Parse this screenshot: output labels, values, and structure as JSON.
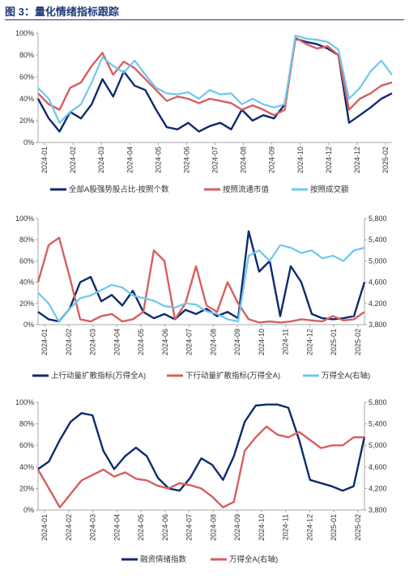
{
  "figure_title": "图 3：量化情绪指标跟踪",
  "colors": {
    "navy": "#0e2a6e",
    "red": "#d65f5f",
    "light_blue": "#6fc7ec",
    "title": "#1f3a78",
    "axis": "#a8a8a8",
    "text": "#333333"
  },
  "chart_data": [
    {
      "type": "line",
      "x_tick_labels": [
        "2024-01",
        "2024-02",
        "2024-03",
        "2024-04",
        "2024-05",
        "2024-06",
        "2024-07",
        "2024-08",
        "2024-09",
        "2024-10",
        "2024-12",
        "2024-12",
        "2025-02"
      ],
      "y_tick_labels": [
        "0%",
        "20%",
        "40%",
        "60%",
        "80%",
        "100%"
      ],
      "ylim": [
        0,
        100
      ],
      "legend_position": "bottom",
      "series": [
        {
          "name": "全部A股强势股占比-按照个数",
          "color": "#0e2a6e",
          "axis": "left",
          "values": [
            40,
            22,
            10,
            28,
            22,
            35,
            58,
            42,
            65,
            52,
            48,
            30,
            14,
            12,
            18,
            10,
            15,
            18,
            12,
            30,
            20,
            25,
            22,
            35,
            95,
            92,
            90,
            86,
            80,
            18,
            25,
            32,
            40,
            45
          ]
        },
        {
          "name": "按照流通市值",
          "color": "#d65f5f",
          "axis": "left",
          "values": [
            45,
            35,
            30,
            50,
            55,
            70,
            82,
            62,
            74,
            68,
            58,
            48,
            38,
            42,
            40,
            36,
            40,
            38,
            36,
            30,
            34,
            30,
            25,
            30,
            96,
            90,
            86,
            88,
            80,
            30,
            40,
            45,
            52,
            55
          ]
        },
        {
          "name": "按照成交额",
          "color": "#6fc7ec",
          "axis": "left",
          "values": [
            50,
            40,
            18,
            28,
            35,
            55,
            78,
            70,
            64,
            75,
            62,
            50,
            45,
            44,
            46,
            40,
            48,
            44,
            45,
            35,
            40,
            35,
            32,
            35,
            98,
            95,
            94,
            92,
            85,
            40,
            50,
            65,
            75,
            62
          ]
        }
      ]
    },
    {
      "type": "line",
      "x_tick_labels": [
        "2024-01",
        "2024-02",
        "2024-03",
        "2024-04",
        "2024-05",
        "2024-06",
        "2024-07",
        "2024-08",
        "2024-09",
        "2024-10",
        "2024-11",
        "2024-12",
        "2025-01",
        "2025-02"
      ],
      "y_tick_labels": [
        "0%",
        "20%",
        "40%",
        "60%",
        "80%",
        "100%"
      ],
      "y2_tick_labels": [
        "3,800",
        "4,200",
        "4,600",
        "5,000",
        "5,400",
        "5,800"
      ],
      "ylim": [
        0,
        100
      ],
      "y2lim": [
        3800,
        5800
      ],
      "legend_position": "bottom",
      "series": [
        {
          "name": "上行动量扩散指标(万得全A)",
          "color": "#0e2a6e",
          "axis": "left",
          "values": [
            12,
            5,
            3,
            15,
            40,
            45,
            22,
            28,
            18,
            32,
            12,
            6,
            10,
            5,
            14,
            10,
            15,
            8,
            12,
            6,
            88,
            50,
            60,
            8,
            55,
            40,
            10,
            6,
            5,
            6,
            8,
            40
          ]
        },
        {
          "name": "下行动量扩散指标(万得全A)",
          "color": "#d65f5f",
          "axis": "left",
          "values": [
            40,
            75,
            82,
            45,
            5,
            3,
            8,
            10,
            3,
            5,
            12,
            70,
            60,
            5,
            20,
            55,
            18,
            12,
            40,
            20,
            5,
            2,
            3,
            2,
            3,
            5,
            4,
            3,
            8,
            4,
            5,
            12
          ]
        },
        {
          "name": "万得全A(右轴)",
          "color": "#6fc7ec",
          "axis": "right",
          "values": [
            4400,
            4200,
            3850,
            4100,
            4300,
            4350,
            4450,
            4550,
            4500,
            4350,
            4300,
            4250,
            4150,
            4120,
            4200,
            4180,
            4050,
            4000,
            3900,
            3860,
            5100,
            5200,
            5000,
            5300,
            5250,
            5150,
            5200,
            5050,
            5100,
            5000,
            5200,
            5250
          ]
        }
      ]
    },
    {
      "type": "line",
      "x_tick_labels": [
        "2024-01",
        "2024-02",
        "2024-03",
        "2024-04",
        "2024-05",
        "2024-06",
        "2024-07",
        "2024-08",
        "2024-09",
        "2024-10",
        "2024-11",
        "2024-12",
        "2025-01",
        "2025-02"
      ],
      "y_tick_labels": [
        "0%",
        "20%",
        "40%",
        "60%",
        "80%",
        "100%"
      ],
      "y2_tick_labels": [
        "3,800",
        "4,200",
        "4,600",
        "5,000",
        "5,400",
        "5,800"
      ],
      "ylim": [
        0,
        100
      ],
      "y2lim": [
        3800,
        5800
      ],
      "legend_position": "bottom",
      "series": [
        {
          "name": "融资情绪指数",
          "color": "#0e2a6e",
          "axis": "left",
          "values": [
            38,
            45,
            65,
            82,
            90,
            88,
            55,
            38,
            50,
            58,
            50,
            30,
            20,
            18,
            30,
            48,
            42,
            28,
            50,
            82,
            97,
            98,
            98,
            95,
            65,
            28,
            25,
            22,
            18,
            22,
            68
          ]
        },
        {
          "name": "万得全A(右轴)",
          "color": "#d65f5f",
          "axis": "right",
          "values": [
            4550,
            4200,
            3850,
            4100,
            4350,
            4450,
            4550,
            4420,
            4500,
            4380,
            4350,
            4250,
            4200,
            4300,
            4260,
            4200,
            4050,
            3850,
            3950,
            4900,
            5150,
            5350,
            5200,
            5150,
            5250,
            5100,
            4950,
            5000,
            5000,
            5150,
            5150
          ]
        }
      ]
    }
  ]
}
